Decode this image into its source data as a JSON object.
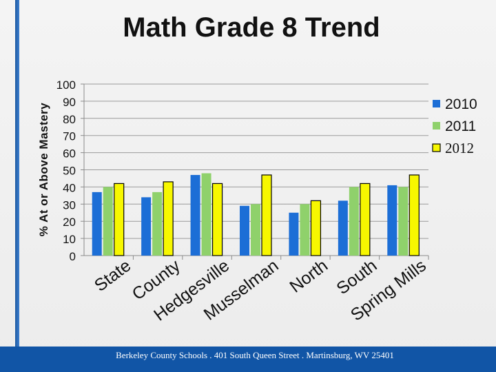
{
  "title": "Math Grade 8 Trend",
  "footer": "Berkeley County Schools . 401 South Queen Street . Martinsburg, WV  25401",
  "chart_data": {
    "type": "bar",
    "title": "Math Grade 8 Trend",
    "ylabel": "% At or Above Mastery",
    "xlabel": "",
    "ylim": [
      0,
      100
    ],
    "yticks": [
      0,
      10,
      20,
      30,
      40,
      50,
      60,
      70,
      80,
      90,
      100
    ],
    "grid": true,
    "legend_position": "right",
    "categories": [
      "State",
      "County",
      "Hedgesville",
      "Musselman",
      "North",
      "South",
      "Spring Mills"
    ],
    "series": [
      {
        "name": "2010",
        "color": "#1c6ed6",
        "values": [
          37,
          34,
          47,
          29,
          25,
          32,
          41
        ]
      },
      {
        "name": "2011",
        "color": "#8fd16b",
        "values": [
          40,
          37,
          48,
          30,
          30,
          40,
          40
        ]
      },
      {
        "name": "2012",
        "color": "#f7f700",
        "values": [
          42,
          43,
          42,
          47,
          32,
          42,
          47
        ]
      }
    ]
  }
}
